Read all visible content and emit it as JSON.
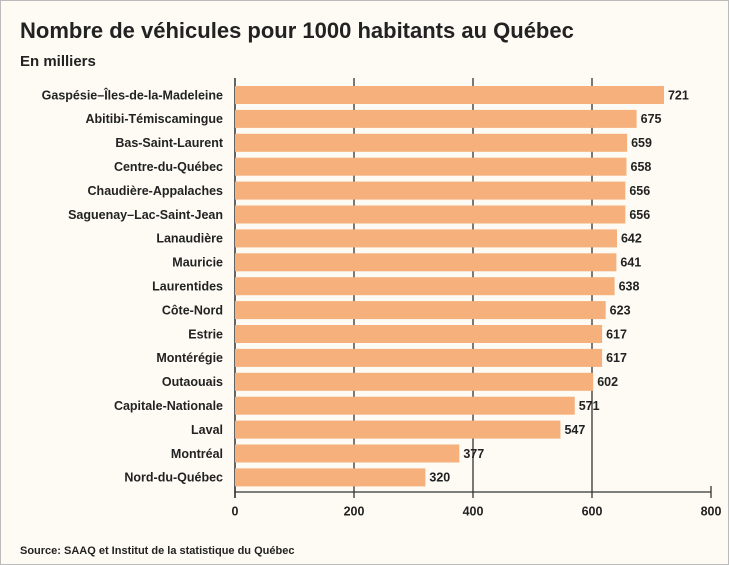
{
  "chart_data": {
    "type": "bar",
    "orientation": "horizontal",
    "title": "Nombre de véhicules pour 1000 habitants au Québec",
    "subtitle": "En milliers",
    "source": "Source: SAAQ et Institut de la statistique du Québec",
    "categories": [
      "Gaspésie–Îles-de-la-Madeleine",
      "Abitibi-Témiscamingue",
      "Bas-Saint-Laurent",
      "Centre-du-Québec",
      "Chaudière-Appalaches",
      "Saguenay–Lac-Saint-Jean",
      "Lanaudière",
      "Mauricie",
      "Laurentides",
      "Côte-Nord",
      "Estrie",
      "Montérégie",
      "Outaouais",
      "Capitale-Nationale",
      "Laval",
      "Montréal",
      "Nord-du-Québec"
    ],
    "values": [
      721,
      675,
      659,
      658,
      656,
      656,
      642,
      641,
      638,
      623,
      617,
      617,
      602,
      571,
      547,
      377,
      320
    ],
    "color": "#f6b07c",
    "xlim": [
      0,
      800
    ],
    "xticks": [
      0,
      200,
      400,
      600,
      800
    ],
    "grid": true
  }
}
